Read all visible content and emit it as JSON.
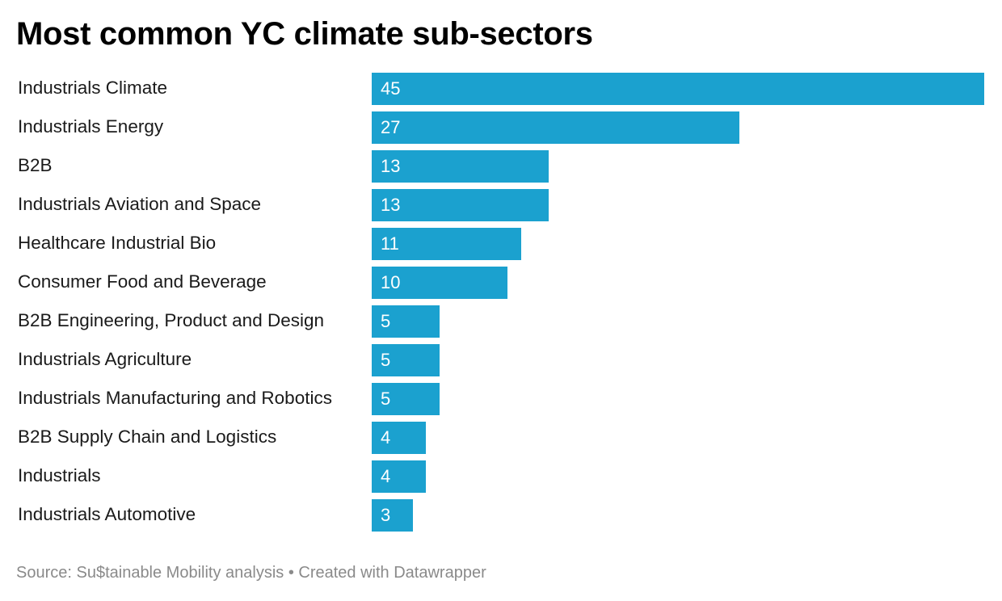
{
  "chart_data": {
    "type": "bar",
    "orientation": "horizontal",
    "title": "Most common YC climate sub-sectors",
    "categories": [
      "Industrials Climate",
      "Industrials Energy",
      "B2B",
      "Industrials Aviation and Space",
      "Healthcare Industrial Bio",
      "Consumer Food and Beverage",
      "B2B Engineering, Product and Design",
      "Industrials Agriculture",
      "Industrials Manufacturing and Robotics",
      "B2B Supply Chain and Logistics",
      "Industrials",
      "Industrials Automotive"
    ],
    "values": [
      45,
      27,
      13,
      13,
      11,
      10,
      5,
      5,
      5,
      4,
      4,
      3
    ],
    "xlabel": "",
    "ylabel": "",
    "xlim": [
      0,
      45
    ],
    "grid": false,
    "legend": "none",
    "data_labels": "inside-bar-start",
    "bar_color": "#1ba1cf",
    "label_color": "#ffffff"
  },
  "footer": {
    "source": "Source: Su$tainable Mobility analysis • Created with Datawrapper"
  }
}
